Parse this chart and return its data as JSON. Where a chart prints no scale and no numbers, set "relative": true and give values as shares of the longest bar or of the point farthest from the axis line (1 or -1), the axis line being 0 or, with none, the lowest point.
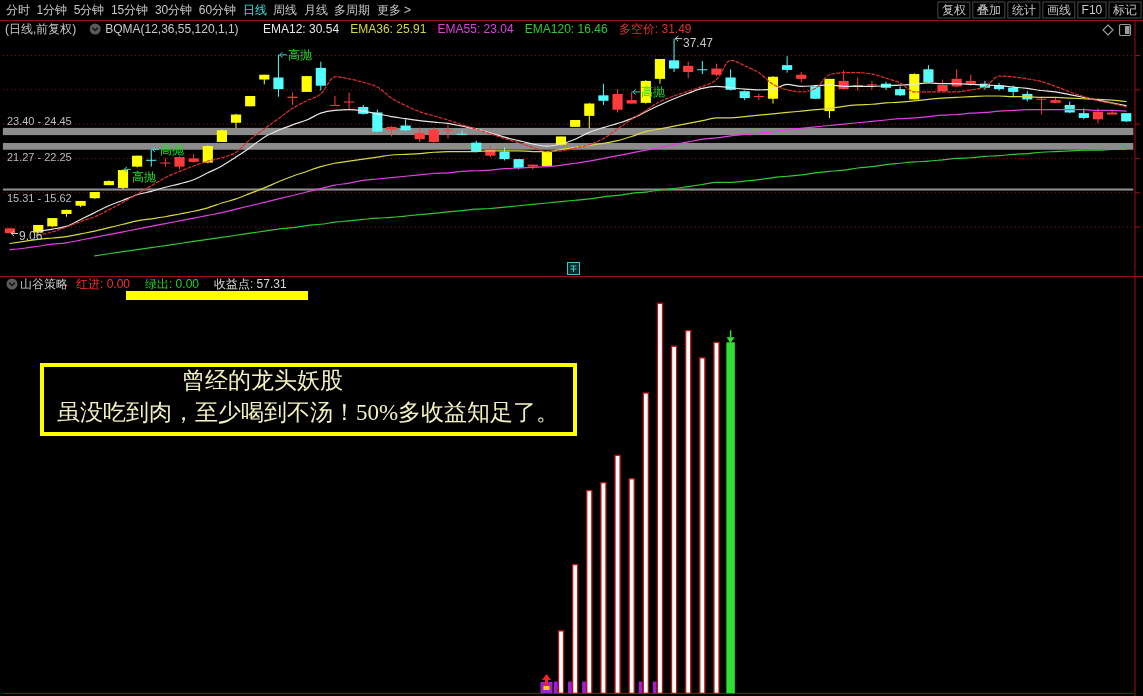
{
  "chart_data": [
    {
      "type": "other",
      "annotations": [
        "分时",
        "1分钟",
        "5分钟",
        "15分钟",
        "30分钟",
        "60分钟",
        "日线",
        "周线",
        "月线",
        "多周期",
        "更多 >",
        "复权",
        "叠加",
        "统计",
        "画线",
        "F10",
        "标记"
      ]
    },
    {
      "type": "candlestick",
      "title": "(日线,前复权)",
      "legend_title": "BQMA(12,36,55,120,1,1)",
      "legend": "top left",
      "tick_labels": false,
      "grid": "y",
      "categories": [
        null,
        null,
        null,
        null,
        null,
        null,
        null,
        null,
        null,
        null,
        null,
        null,
        null,
        null,
        null,
        null,
        null,
        null,
        null,
        null,
        null,
        null,
        null,
        null,
        null,
        null,
        null,
        null,
        null,
        null,
        null,
        null,
        null,
        null,
        null,
        null,
        null,
        null,
        null,
        null,
        null,
        null,
        null,
        null,
        null,
        null,
        null,
        null,
        null,
        null,
        null,
        null,
        null,
        null,
        null,
        null,
        null,
        null,
        null,
        null,
        null,
        null,
        null,
        null,
        null,
        null,
        null,
        null,
        null,
        null,
        null,
        null,
        null,
        null,
        null,
        null,
        null,
        null,
        null,
        null
      ],
      "ohlc": [
        [
          9.1,
          9.9,
          9.06,
          9.8
        ],
        null,
        [
          9.2,
          10.3,
          9.1,
          10.3
        ],
        [
          10.1,
          11.3,
          10.0,
          11.3
        ],
        [
          11.9,
          12.5,
          11.5,
          12.5
        ],
        [
          13.1,
          13.8,
          12.9,
          13.8
        ],
        [
          14.2,
          15.1,
          14.1,
          15.1
        ],
        [
          16.1,
          16.8,
          16.1,
          16.7
        ],
        [
          15.7,
          18.4,
          15.5,
          18.3
        ],
        [
          18.8,
          20.4,
          18.7,
          20.4
        ],
        [
          19.8,
          21.3,
          18.8,
          19.7
        ],
        [
          19.3,
          20.0,
          18.8,
          19.4
        ],
        [
          18.8,
          20.3,
          18.4,
          20.2
        ],
        [
          19.5,
          20.6,
          19.4,
          20.0
        ],
        [
          19.4,
          21.9,
          19.3,
          21.8
        ],
        [
          22.4,
          24.2,
          22.4,
          24.1
        ],
        [
          25.2,
          26.5,
          24.4,
          26.4
        ],
        [
          27.6,
          29.1,
          27.6,
          29.1
        ],
        [
          31.5,
          32.2,
          30.8,
          32.2
        ],
        [
          31.8,
          35.1,
          29.0,
          30.1
        ],
        [
          28.8,
          29.6,
          27.8,
          29.0
        ],
        [
          29.7,
          32.0,
          29.7,
          32.0
        ],
        [
          33.2,
          34.1,
          29.9,
          30.6
        ],
        [
          27.7,
          29.1,
          27.7,
          27.8
        ],
        [
          28.2,
          29.6,
          27.1,
          28.3
        ],
        [
          27.5,
          27.8,
          26.4,
          26.5
        ],
        [
          26.7,
          27.1,
          23.9,
          23.9
        ],
        [
          24.2,
          24.7,
          23.2,
          24.6
        ],
        [
          24.8,
          25.7,
          24.0,
          24.1
        ],
        [
          22.8,
          24.5,
          22.4,
          23.7
        ],
        [
          22.4,
          24.5,
          22.3,
          24.2
        ],
        [
          24.1,
          24.9,
          22.9,
          24.2
        ],
        [
          23.6,
          24.1,
          23.4,
          23.5
        ],
        [
          22.3,
          22.6,
          20.9,
          21.0
        ],
        [
          20.4,
          21.8,
          20.2,
          21.3
        ],
        [
          21.0,
          21.6,
          19.7,
          19.9
        ],
        [
          19.9,
          19.9,
          18.4,
          18.6
        ],
        [
          18.8,
          19.1,
          18.4,
          19.1
        ],
        [
          18.9,
          21.1,
          18.9,
          21.1
        ],
        [
          22.0,
          23.2,
          21.9,
          23.2
        ],
        [
          24.6,
          25.6,
          24.6,
          25.6
        ],
        [
          26.2,
          28.1,
          24.4,
          28.0
        ],
        [
          29.2,
          30.9,
          27.8,
          28.4
        ],
        [
          27.1,
          30.1,
          26.7,
          29.4
        ],
        [
          28.0,
          29.7,
          28.0,
          28.5
        ],
        [
          28.1,
          31.4,
          28.0,
          31.3
        ],
        [
          31.6,
          34.5,
          30.9,
          34.5
        ],
        [
          34.3,
          37.47,
          32.6,
          33.1
        ],
        [
          32.6,
          34.1,
          31.7,
          33.5
        ],
        [
          33.0,
          34.2,
          32.3,
          32.9
        ],
        [
          32.2,
          33.8,
          32.0,
          33.1
        ],
        [
          31.8,
          33.0,
          29.9,
          30.0
        ],
        [
          29.8,
          29.9,
          28.5,
          28.8
        ],
        [
          29.0,
          29.4,
          28.5,
          29.1
        ],
        [
          28.7,
          32.0,
          28.0,
          31.9
        ],
        [
          33.6,
          34.9,
          32.5,
          32.9
        ],
        [
          31.6,
          32.6,
          31.1,
          32.2
        ],
        [
          30.5,
          30.6,
          28.7,
          28.7
        ],
        [
          26.9,
          31.6,
          25.9,
          31.6
        ],
        [
          30.1,
          32.8,
          30.0,
          31.3
        ],
        [
          30.5,
          31.8,
          29.9,
          30.7
        ],
        [
          30.7,
          31.3,
          30.0,
          30.8
        ],
        [
          30.9,
          31.2,
          30.0,
          30.3
        ],
        [
          30.1,
          30.5,
          29.1,
          29.2
        ],
        [
          28.6,
          32.4,
          28.6,
          32.3
        ],
        [
          33.0,
          33.6,
          31.0,
          31.1
        ],
        [
          29.8,
          31.5,
          29.8,
          30.7
        ],
        [
          30.5,
          33.0,
          30.4,
          31.6
        ],
        [
          30.9,
          32.2,
          30.6,
          31.3
        ],
        [
          30.9,
          31.3,
          30.0,
          30.3
        ],
        [
          30.6,
          31.0,
          29.9,
          30.1
        ],
        [
          30.3,
          30.6,
          28.9,
          29.7
        ],
        [
          29.4,
          29.8,
          28.3,
          28.6
        ],
        [
          28.6,
          29.0,
          26.4,
          28.7
        ],
        [
          28.1,
          28.9,
          28.1,
          28.5
        ],
        [
          27.8,
          28.3,
          26.6,
          26.7
        ],
        [
          26.6,
          27.3,
          25.7,
          25.9
        ],
        [
          25.7,
          27.3,
          25.1,
          26.8
        ],
        [
          26.4,
          27.1,
          26.4,
          26.7
        ],
        [
          26.6,
          26.6,
          25.3,
          25.4
        ]
      ],
      "colors": [
        "#ff3c3c",
        null,
        "#ffff00",
        "#ffff00",
        "#ffff00",
        "#ffff00",
        "#ffff00",
        "#ffff00",
        "#ffff00",
        "#ffff00",
        "#54fcfc",
        "#ff3c3c",
        "#ff3c3c",
        "#ff3c3c",
        "#ffff00",
        "#ffff00",
        "#ffff00",
        "#ffff00",
        "#ffff00",
        "#54fcfc",
        "#ff3c3c",
        "#ffff00",
        "#54fcfc",
        "#ff3c3c",
        "#ff3c3c",
        "#54fcfc",
        "#54fcfc",
        "#ff3c3c",
        "#54fcfc",
        "#ff3c3c",
        "#ff3c3c",
        "#ff3c3c",
        "#54fcfc",
        "#54fcfc",
        "#ff3c3c",
        "#54fcfc",
        "#54fcfc",
        "#ff3c3c",
        "#ffff00",
        "#ffff00",
        "#ffff00",
        "#ffff00",
        "#54fcfc",
        "#ff3c3c",
        "#ff3c3c",
        "#ffff00",
        "#ffff00",
        "#54fcfc",
        "#ff3c3c",
        "#54fcfc",
        "#ff3c3c",
        "#54fcfc",
        "#54fcfc",
        "#ff3c3c",
        "#ffff00",
        "#54fcfc",
        "#ff3c3c",
        "#54fcfc",
        "#ffff00",
        "#ff3c3c",
        "#ff3c3c",
        "#ff3c3c",
        "#54fcfc",
        "#54fcfc",
        "#ffff00",
        "#54fcfc",
        "#ff3c3c",
        "#ff3c3c",
        "#ff3c3c",
        "#54fcfc",
        "#54fcfc",
        "#54fcfc",
        "#54fcfc",
        "#ff3c3c",
        "#ff3c3c",
        "#54fcfc",
        "#54fcfc",
        "#ff3c3c",
        "#ff3c3c",
        "#54fcfc"
      ],
      "series": [
        {
          "name": "EMA12: 30.54",
          "type": "line",
          "color": "#e6e6e6",
          "values": [
            null,
            null,
            9.4,
            9.7,
            10.1,
            11.1,
            12.1,
            13.1,
            13.9,
            14.7,
            15.2,
            15.8,
            16.3,
            16.9,
            17.9,
            18.9,
            20.2,
            21.6,
            23.1,
            24.1,
            24.9,
            25.6,
            26.6,
            27.0,
            27.1,
            26.9,
            26.5,
            26.1,
            25.8,
            25.5,
            25.3,
            25.1,
            24.7,
            24.3,
            23.7,
            23.1,
            22.6,
            22.1,
            21.8,
            22.1,
            22.8,
            23.8,
            24.5,
            25.1,
            25.8,
            26.8,
            27.8,
            28.7,
            29.5,
            30.2,
            30.5,
            30.3,
            30.1,
            30.0,
            30.1,
            30.8,
            30.5,
            30.6,
            30.7,
            30.5,
            30.5,
            30.5,
            30.6,
            30.7,
            30.8,
            31.0,
            30.9,
            30.9,
            30.8,
            30.7,
            30.6,
            30.4,
            30.2,
            29.9,
            29.7,
            29.3,
            28.9,
            28.5,
            28.1,
            27.7
          ]
        },
        {
          "name": "EMA36: 25.91",
          "type": "line",
          "color": "#d8d840",
          "values": [
            7.6,
            7.9,
            8.2,
            8.4,
            8.6,
            9.0,
            9.4,
            9.9,
            10.4,
            10.9,
            11.2,
            11.5,
            11.9,
            12.3,
            12.8,
            13.5,
            14.1,
            14.9,
            15.7,
            16.6,
            17.4,
            18.1,
            18.8,
            19.3,
            19.6,
            19.9,
            20.2,
            20.5,
            20.6,
            20.7,
            20.9,
            21.0,
            21.0,
            21.0,
            21.1,
            21.1,
            21.1,
            21.0,
            21.0,
            21.3,
            21.6,
            21.9,
            22.2,
            22.6,
            23.2,
            23.9,
            24.3,
            24.7,
            25.1,
            25.5,
            25.9,
            25.9,
            26.1,
            26.3,
            26.5,
            26.7,
            26.9,
            27.1,
            27.3,
            27.6,
            27.8,
            27.9,
            28.1,
            28.2,
            28.4,
            28.6,
            28.8,
            28.9,
            29.0,
            29.1,
            29.1,
            29.0,
            29.0,
            28.9,
            28.9,
            28.8,
            28.7,
            28.6,
            28.5,
            28.3
          ]
        },
        {
          "name": "EMA55: 23.04",
          "type": "line",
          "color": "#e040e0",
          "values": [
            6.7,
            6.9,
            7.2,
            7.5,
            7.7,
            8.1,
            8.5,
            8.9,
            9.3,
            9.7,
            10.1,
            10.5,
            10.9,
            11.3,
            11.7,
            12.1,
            12.6,
            13.1,
            13.6,
            14.1,
            14.6,
            15.1,
            15.6,
            16.1,
            16.4,
            16.8,
            17.0,
            17.2,
            17.4,
            17.6,
            17.8,
            17.9,
            18.1,
            18.2,
            18.3,
            18.5,
            18.6,
            18.7,
            18.8,
            19.0,
            19.3,
            19.6,
            20.0,
            20.4,
            20.8,
            21.2,
            21.6,
            22.0,
            22.4,
            22.8,
            23.0,
            23.3,
            23.5,
            23.7,
            23.9,
            24.2,
            24.4,
            24.6,
            24.8,
            25.0,
            25.2,
            25.4,
            25.6,
            25.8,
            25.9,
            26.1,
            26.3,
            26.4,
            26.6,
            26.7,
            26.9,
            27.0,
            27.1,
            27.1,
            27.1,
            27.1,
            27.1,
            27.0,
            27.0,
            26.9
          ]
        },
        {
          "name": "EMA120: 16.46",
          "type": "line",
          "color": "#30c830",
          "values": [
            null,
            null,
            null,
            null,
            null,
            null,
            5.8,
            6.1,
            6.4,
            6.7,
            7.0,
            7.3,
            7.6,
            7.9,
            8.2,
            8.5,
            8.8,
            9.1,
            9.4,
            9.7,
            9.9,
            10.2,
            10.4,
            10.7,
            10.9,
            11.1,
            11.3,
            11.4,
            11.6,
            11.8,
            12.0,
            12.2,
            12.4,
            12.6,
            12.7,
            12.9,
            13.1,
            13.3,
            13.5,
            13.7,
            13.9,
            14.1,
            14.4,
            14.6,
            14.9,
            15.1,
            15.4,
            15.6,
            15.9,
            16.2,
            16.5,
            16.5,
            16.7,
            16.9,
            17.2,
            17.4,
            17.6,
            17.9,
            18.1,
            18.3,
            18.6,
            18.8,
            19.1,
            19.3,
            19.5,
            19.6,
            19.8,
            20.0,
            20.1,
            20.3,
            20.4,
            20.6,
            20.7,
            20.9,
            21.0,
            21.1,
            21.2,
            21.2,
            21.3,
            21.3
          ]
        },
        {
          "name": "多空价: 31.49",
          "type": "line",
          "color": "#e03030",
          "line_style": "dashed",
          "values": [
            null,
            null,
            8.8,
            9.3,
            10.0,
            10.8,
            11.5,
            12.5,
            13.6,
            14.8,
            16.0,
            17.2,
            18.1,
            18.9,
            19.6,
            20.1,
            20.9,
            22.8,
            24.3,
            25.8,
            27.3,
            28.4,
            29.4,
            31.9,
            31.6,
            31.1,
            30.4,
            28.8,
            27.7,
            26.8,
            26.2,
            25.6,
            24.9,
            24.3,
            23.6,
            22.9,
            22.3,
            21.6,
            21.0,
            21.1,
            21.5,
            22.0,
            22.9,
            24.3,
            25.7,
            27.0,
            28.3,
            29.1,
            29.8,
            30.5,
            31.5,
            34.3,
            33.5,
            32.5,
            30.8,
            30.0,
            29.7,
            30.2,
            32.2,
            32.5,
            32.5,
            32.3,
            31.7,
            31.0,
            29.7,
            29.7,
            29.7,
            29.7,
            30.0,
            30.4,
            32.0,
            31.9,
            31.6,
            31.2,
            30.5,
            29.7,
            29.0,
            28.4,
            28.0,
            27.5
          ]
        }
      ],
      "ylim": [
        3.5,
        37.6
      ],
      "yticks": [
        10,
        15,
        20,
        25,
        30,
        35
      ],
      "bands": [
        {
          "axis": "y",
          "from": 15.31,
          "to": 15.62,
          "label": "15.31 - 15.62",
          "color": "#8c8c8c"
        },
        {
          "axis": "y",
          "from": 21.27,
          "to": 22.25,
          "label": "21.27 - 22.25",
          "color": "#8c8c8c"
        },
        {
          "axis": "y",
          "from": 23.4,
          "to": 24.45,
          "label": "23.40 - 24.45",
          "color": "#8c8c8c"
        }
      ],
      "annotations": [
        "9.06",
        "高抛",
        "高抛",
        "高抛",
        "高抛",
        "37.47"
      ]
    },
    {
      "type": "bar",
      "title": "山谷策略",
      "relative": true,
      "categories": [
        null,
        null,
        null,
        null,
        null,
        null,
        null,
        null,
        null,
        null,
        null,
        null,
        null,
        null,
        null,
        null,
        null,
        null,
        null,
        null,
        null,
        null,
        null,
        null,
        null,
        null,
        null,
        null,
        null,
        null,
        null,
        null,
        null,
        null,
        null,
        null,
        null,
        null,
        null,
        null,
        null,
        null,
        null,
        null,
        null,
        null,
        null,
        null,
        null,
        null,
        null,
        null,
        null,
        null,
        null,
        null,
        null,
        null,
        null,
        null,
        null,
        null,
        null,
        null,
        null,
        null,
        null,
        null,
        null,
        null,
        null,
        null,
        null,
        null,
        null,
        null,
        null,
        null,
        null,
        null
      ],
      "series": [
        {
          "type": "bar",
          "color": "#a020d0",
          "values": [
            null,
            null,
            null,
            null,
            null,
            null,
            null,
            null,
            null,
            null,
            null,
            null,
            null,
            null,
            null,
            null,
            null,
            null,
            null,
            null,
            null,
            null,
            null,
            null,
            null,
            null,
            null,
            null,
            null,
            null,
            null,
            null,
            null,
            null,
            null,
            null,
            null,
            null,
            null,
            0.03,
            0.03,
            0.03,
            null,
            null,
            null,
            0.03,
            0.03,
            null,
            null,
            null,
            null,
            null,
            null,
            null,
            null,
            null,
            null,
            null,
            null,
            null,
            null,
            null,
            null,
            null,
            null,
            null,
            null,
            null,
            null,
            null,
            null,
            null,
            null,
            null,
            null,
            null,
            null,
            null,
            null,
            null
          ]
        },
        {
          "type": "bar",
          "color": "#ffffff",
          "values": [
            null,
            null,
            null,
            null,
            null,
            null,
            null,
            null,
            null,
            null,
            null,
            null,
            null,
            null,
            null,
            null,
            null,
            null,
            null,
            null,
            null,
            null,
            null,
            null,
            null,
            null,
            null,
            null,
            null,
            null,
            null,
            null,
            null,
            null,
            null,
            null,
            null,
            null,
            null,
            0.16,
            0.33,
            0.52,
            0.54,
            0.61,
            0.55,
            0.77,
            1,
            0.89,
            0.93,
            0.86,
            0.9,
            null,
            null,
            null,
            null,
            null,
            null,
            null,
            null,
            null,
            null,
            null,
            null,
            null,
            null,
            null,
            null,
            null,
            null,
            null,
            null,
            null,
            null,
            null,
            null,
            null,
            null,
            null,
            null,
            null
          ]
        },
        {
          "type": "bar",
          "color": "#30e030",
          "values": [
            null,
            null,
            null,
            null,
            null,
            null,
            null,
            null,
            null,
            null,
            null,
            null,
            null,
            null,
            null,
            null,
            null,
            null,
            null,
            null,
            null,
            null,
            null,
            null,
            null,
            null,
            null,
            null,
            null,
            null,
            null,
            null,
            null,
            null,
            null,
            null,
            null,
            null,
            null,
            null,
            null,
            null,
            null,
            null,
            null,
            null,
            null,
            null,
            null,
            null,
            null,
            0.9,
            null,
            null,
            null,
            null,
            null,
            null,
            null,
            null,
            null,
            null,
            null,
            null,
            null,
            null,
            null,
            null,
            null,
            null,
            null,
            null,
            null,
            null,
            null,
            null,
            null,
            null,
            null,
            null
          ]
        }
      ],
      "annotations": [
        "红进: 0.00",
        "绿出: 0.00",
        "收益点: 57.31",
        "曾经的龙头妖股",
        "虽没吃到肉，至少喝到不汤！50%多收益知足了。"
      ]
    }
  ]
}
